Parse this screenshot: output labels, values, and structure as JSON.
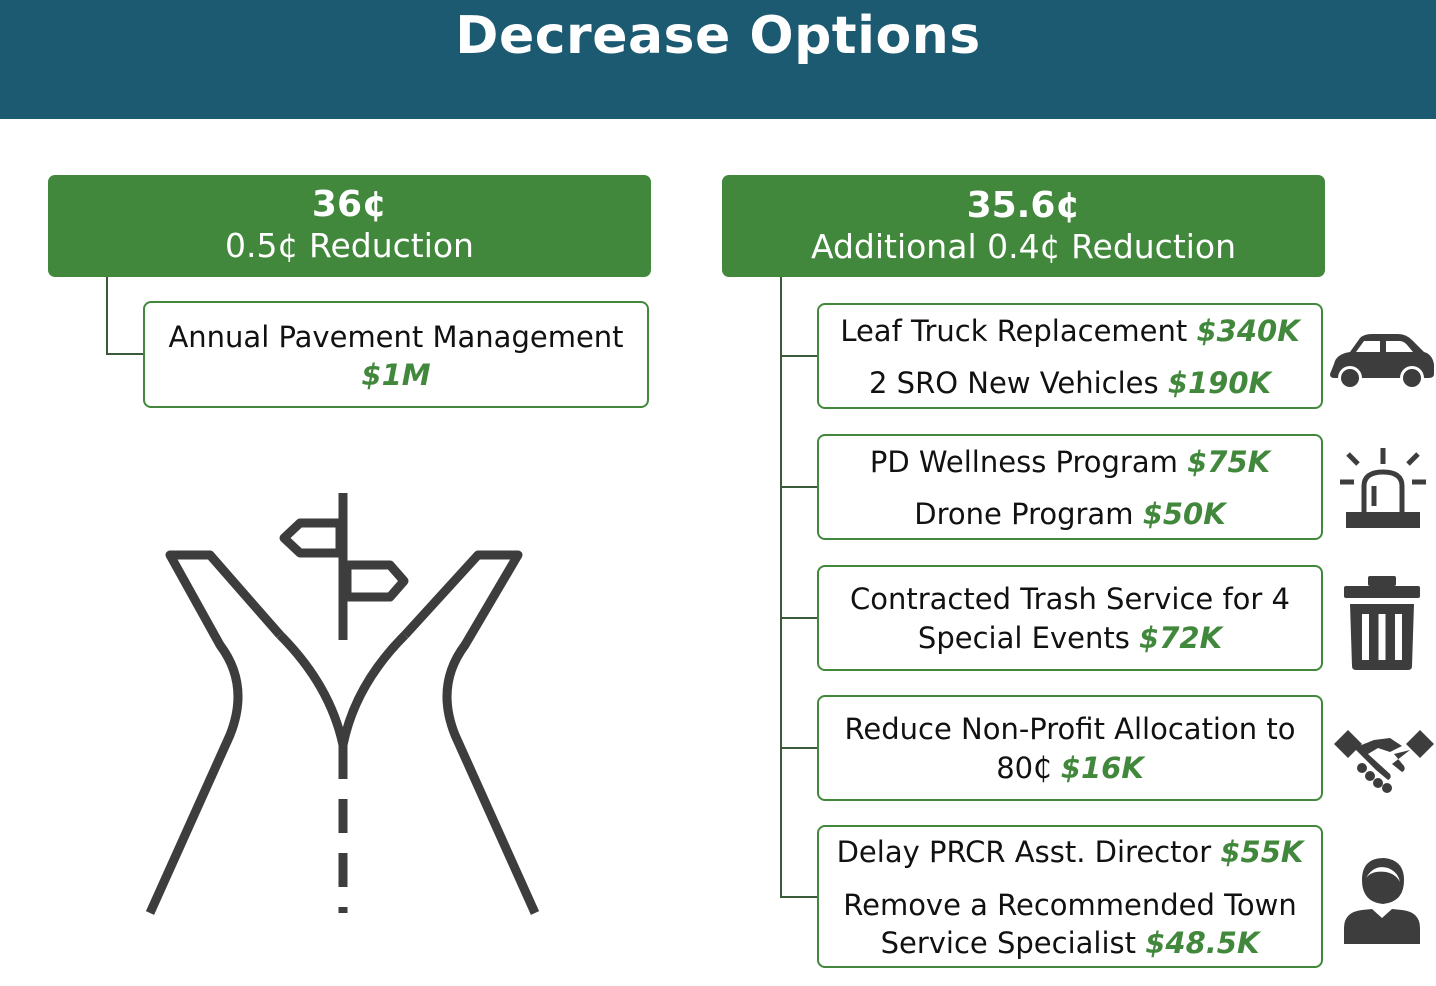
{
  "header": {
    "title": "Decrease Options"
  },
  "left": {
    "rate": "36¢",
    "description": "0.5¢ Reduction",
    "items": [
      {
        "text": "Annual Pavement Management",
        "amount": "$1M"
      }
    ]
  },
  "right": {
    "rate": "35.6¢",
    "description": "Additional 0.4¢ Reduction",
    "groups": [
      {
        "icon": "car-icon",
        "lines": [
          {
            "text": "Leaf Truck Replacement",
            "amount": "$340K"
          },
          {
            "text": "2 SRO New Vehicles",
            "amount": "$190K"
          }
        ]
      },
      {
        "icon": "siren-icon",
        "lines": [
          {
            "text": "PD Wellness Program",
            "amount": "$75K"
          },
          {
            "text": "Drone Program",
            "amount": "$50K"
          }
        ]
      },
      {
        "icon": "trash-icon",
        "lines": [
          {
            "text": "Contracted Trash Service for 4",
            "amount": ""
          },
          {
            "text": "Special Events",
            "amount": "$72K"
          }
        ]
      },
      {
        "icon": "handshake-icon",
        "lines": [
          {
            "text": "Reduce Non-Profit Allocation to",
            "amount": ""
          },
          {
            "text": "80₵",
            "amount": "$16K"
          }
        ]
      },
      {
        "icon": "person-icon",
        "lines": [
          {
            "text": "Delay PRCR Asst. Director",
            "amount": "$55K"
          },
          {
            "text": "Remove a Recommended Town",
            "amount": ""
          },
          {
            "text": "Service Specialist",
            "amount": "$48.5K"
          }
        ]
      }
    ]
  },
  "illustration": {
    "icon": "road-fork-signpost-icon"
  }
}
